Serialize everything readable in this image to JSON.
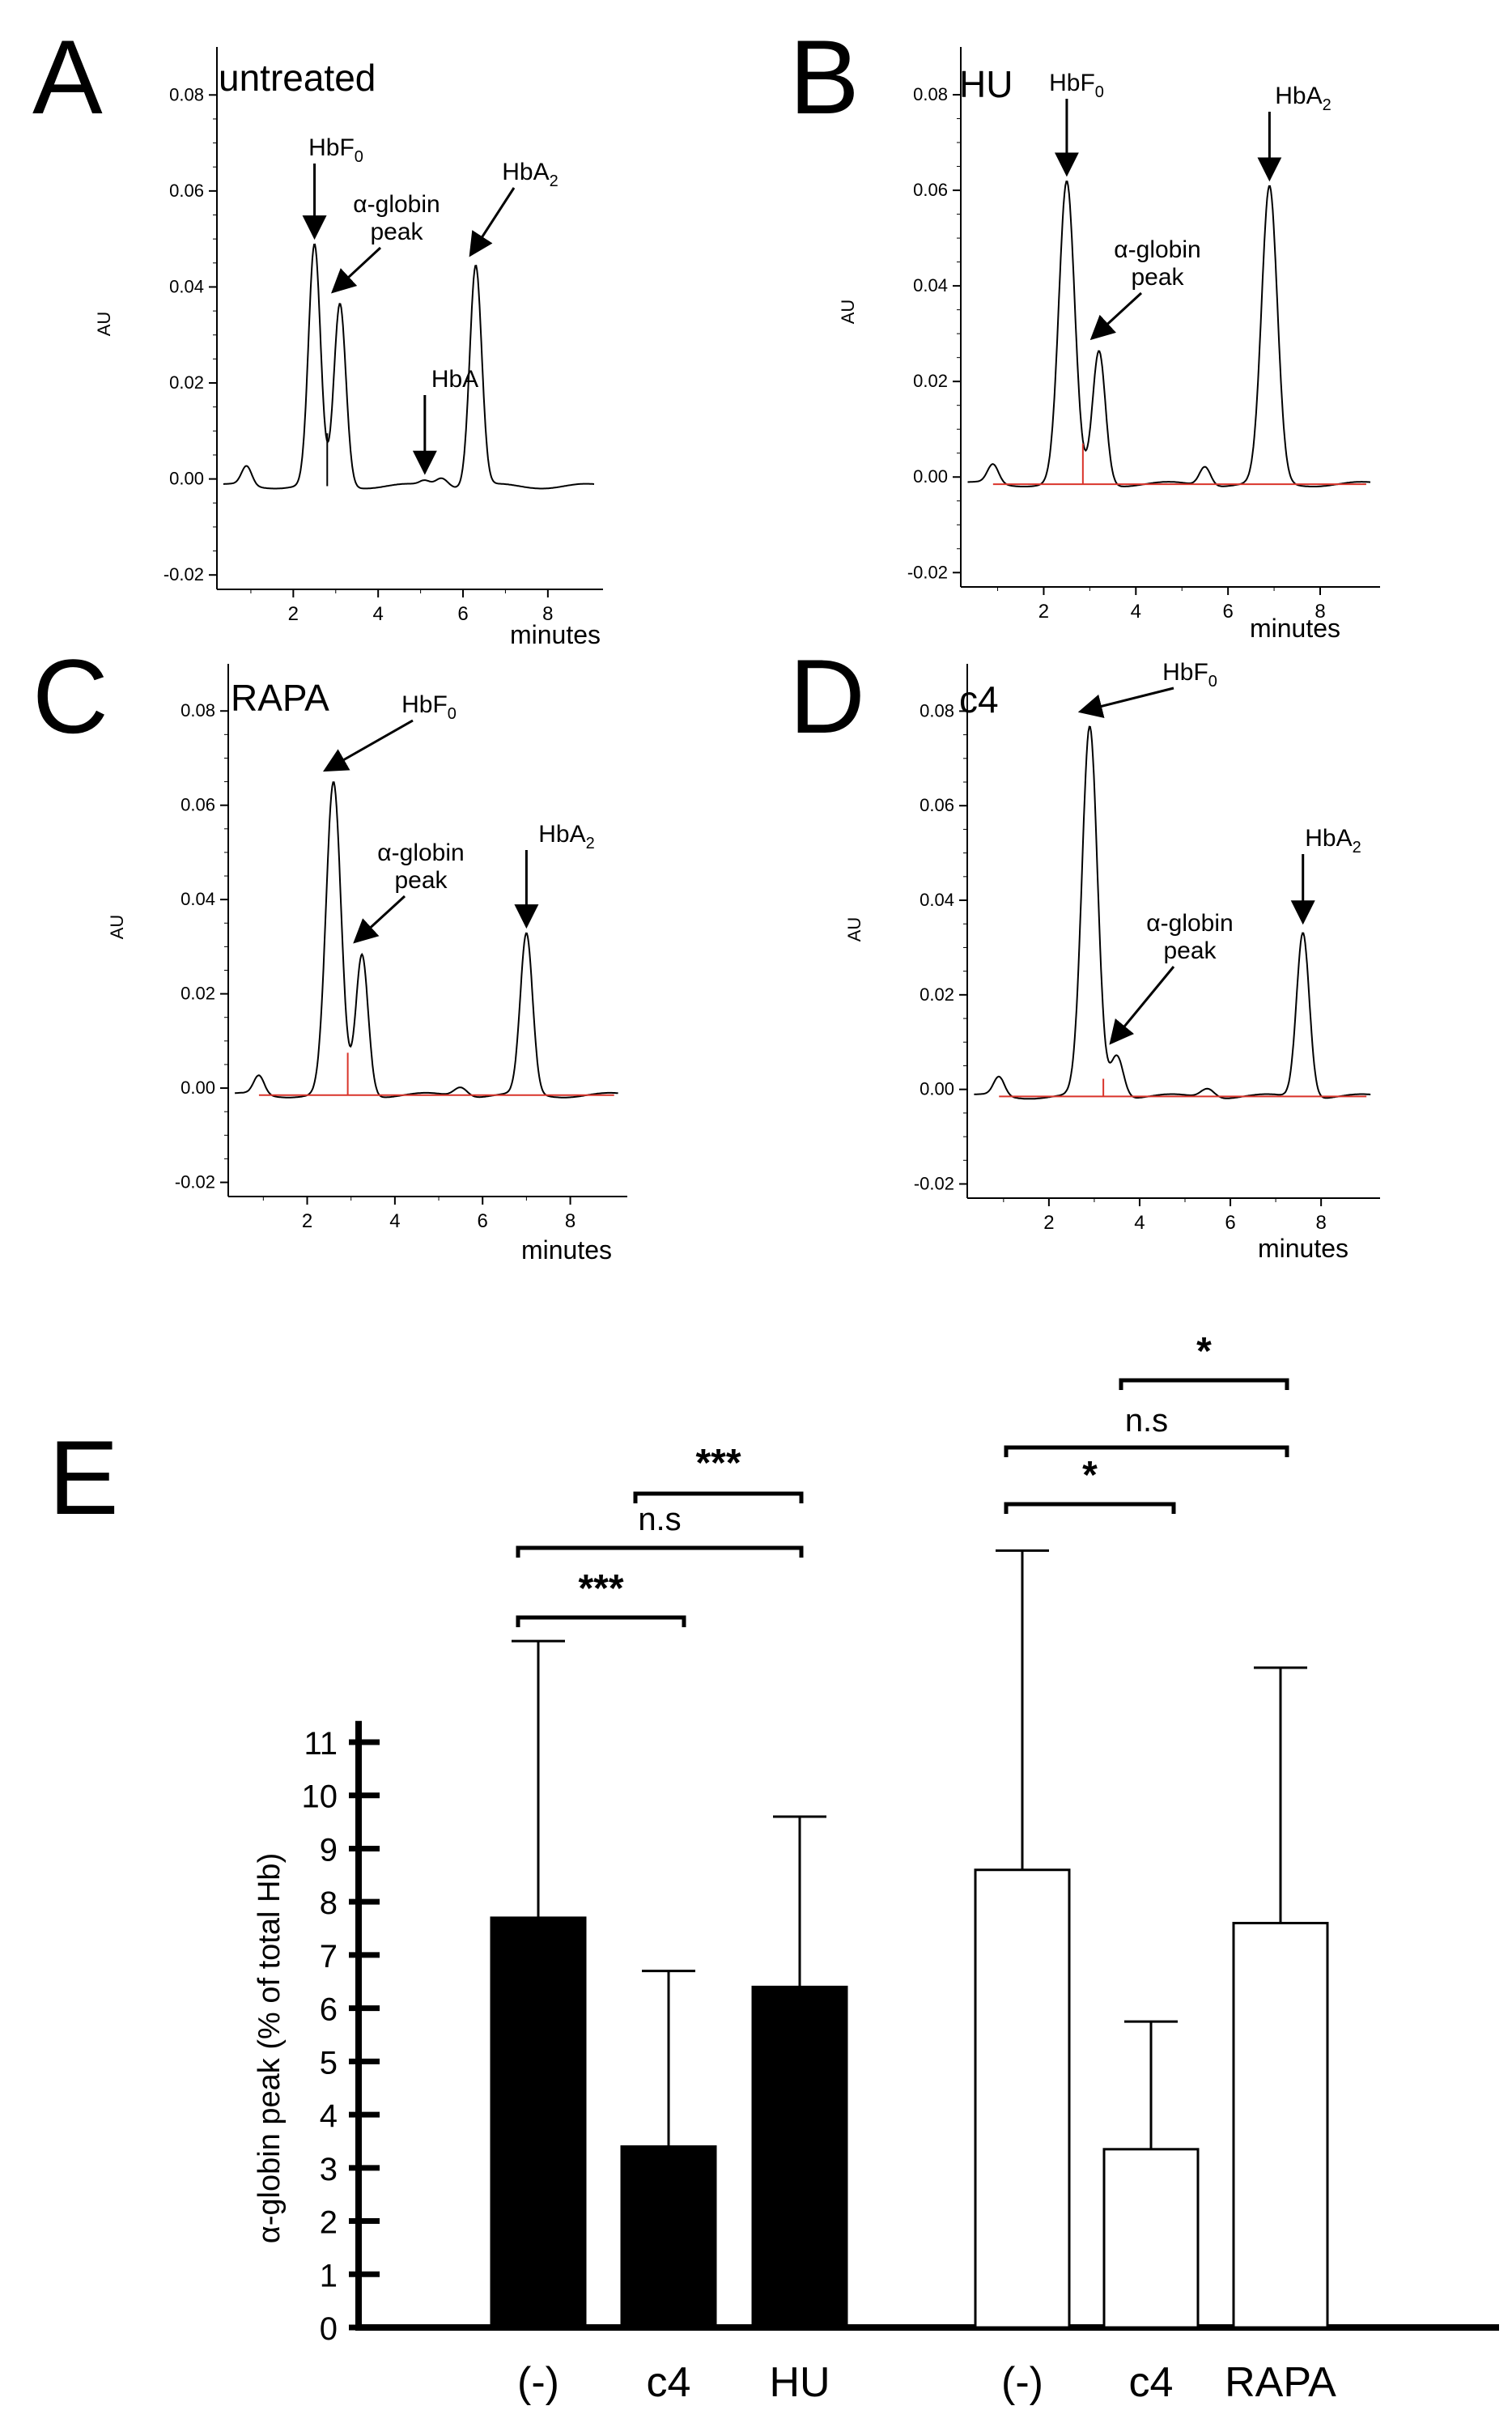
{
  "panels": [
    {
      "letter": "A",
      "treatment": "untreated",
      "xlabel": "minutes",
      "ylabel": "AU",
      "xticks": [
        "2",
        "4",
        "6",
        "8"
      ],
      "yticks": [
        "0.08",
        "0.06",
        "0.04",
        "0.02",
        "0.00",
        "-0.02"
      ],
      "peaks": [
        {
          "name": "HbF",
          "sub": "0",
          "x": 2.5,
          "y": 0.05
        },
        {
          "name": "α-globin",
          "line2": "peak",
          "x": 3.1,
          "y": 0.038
        },
        {
          "name": "HbA",
          "x": 5.1,
          "y": 0.001
        },
        {
          "name": "HbA",
          "sub": "2",
          "x": 6.3,
          "y": 0.046
        }
      ]
    },
    {
      "letter": "B",
      "treatment": "HU",
      "xlabel": "minutes",
      "ylabel": "AU",
      "xticks": [
        "2",
        "4",
        "6",
        "8"
      ],
      "yticks": [
        "0.08",
        "0.06",
        "0.04",
        "0.02",
        "0.00",
        "-0.02"
      ],
      "peaks": [
        {
          "name": "HbF",
          "sub": "0",
          "x": 2.5,
          "y": 0.063
        },
        {
          "name": "α-globin",
          "line2": "peak",
          "x": 3.2,
          "y": 0.028
        },
        {
          "name": "HbA",
          "sub": "2",
          "x": 6.9,
          "y": 0.062
        }
      ]
    },
    {
      "letter": "C",
      "treatment": "RAPA",
      "xlabel": "minutes",
      "ylabel": "AU",
      "xticks": [
        "2",
        "4",
        "6",
        "8"
      ],
      "yticks": [
        "0.08",
        "0.06",
        "0.04",
        "0.02",
        "0.00",
        "-0.02"
      ],
      "peaks": [
        {
          "name": "HbF",
          "sub": "0",
          "x": 2.6,
          "y": 0.066
        },
        {
          "name": "α-globin",
          "line2": "peak",
          "x": 3.25,
          "y": 0.03
        },
        {
          "name": "HbA",
          "sub": "2",
          "x": 7.0,
          "y": 0.034
        }
      ]
    },
    {
      "letter": "D",
      "treatment": "c4",
      "xlabel": "minutes",
      "ylabel": "AU",
      "xticks": [
        "2",
        "4",
        "6",
        "8"
      ],
      "yticks": [
        "0.08",
        "0.06",
        "0.04",
        "0.02",
        "0.00",
        "-0.02"
      ],
      "peaks": [
        {
          "name": "HbF",
          "sub": "0",
          "x": 2.9,
          "y": 0.078
        },
        {
          "name": "α-globin",
          "line2": "peak",
          "x": 3.5,
          "y": 0.009
        },
        {
          "name": "HbA",
          "sub": "2",
          "x": 7.6,
          "y": 0.035
        }
      ]
    }
  ],
  "panel_e": {
    "letter": "E",
    "chart_data": {
      "type": "bar",
      "title": "",
      "ylabel": "α-globin peak (% of total Hb)",
      "ylim": [
        0,
        11
      ],
      "yticks": [
        "0",
        "1",
        "2",
        "3",
        "4",
        "5",
        "6",
        "7",
        "8",
        "9",
        "10",
        "11"
      ],
      "groups": [
        {
          "fill": "#000000",
          "bars": [
            {
              "label": "(-)",
              "value": 7.7,
              "error": 5.2
            },
            {
              "label": "c4",
              "value": 3.4,
              "error": 3.3
            },
            {
              "label": "HU",
              "value": 6.4,
              "error": 3.2
            }
          ]
        },
        {
          "fill": "#ffffff",
          "bars": [
            {
              "label": "(-)",
              "value": 8.6,
              "error": 6.0
            },
            {
              "label": "c4",
              "value": 3.35,
              "error": 2.4
            },
            {
              "label": "RAPA",
              "value": 7.6,
              "error": 4.8
            }
          ]
        }
      ],
      "significance": [
        {
          "text": "***"
        },
        {
          "text": "n.s"
        },
        {
          "text": "***"
        },
        {
          "text": "*"
        },
        {
          "text": "n.s"
        },
        {
          "text": "*"
        }
      ]
    }
  }
}
